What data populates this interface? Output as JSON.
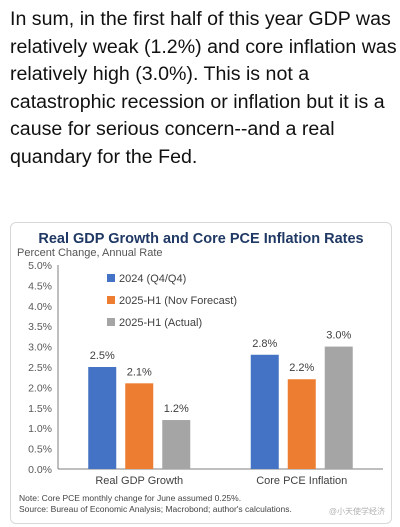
{
  "post": {
    "text": "In sum, in the first half of this year GDP was relatively weak (1.2%) and core inflation was relatively high (3.0%). This is not a catastrophic recession or inflation but it is a cause for serious concern--and a real quandary for the Fed."
  },
  "chart_data": {
    "type": "bar",
    "title": "Real GDP Growth and Core PCE Inflation Rates",
    "subtitle": "Percent Change, Annual Rate",
    "categories": [
      "Real GDP Growth",
      "Core PCE Inflation"
    ],
    "series": [
      {
        "name": "2024 (Q4/Q4)",
        "color": "#4472c4",
        "values": [
          2.5,
          2.8
        ],
        "labels": [
          "2.5%",
          "2.8%"
        ]
      },
      {
        "name": "2025-H1 (Nov Forecast)",
        "color": "#ed7d31",
        "values": [
          2.1,
          2.2
        ],
        "labels": [
          "2.1%",
          "2.2%"
        ]
      },
      {
        "name": "2025-H1 (Actual)",
        "color": "#a5a5a5",
        "values": [
          1.2,
          3.0
        ],
        "labels": [
          "1.2%",
          "3.0%"
        ]
      }
    ],
    "ylim": [
      0,
      5.0
    ],
    "yticks": [
      "0.0%",
      "0.5%",
      "1.0%",
      "1.5%",
      "2.0%",
      "2.5%",
      "3.0%",
      "3.5%",
      "4.0%",
      "4.5%",
      "5.0%"
    ],
    "grid": false,
    "legend": "top-left",
    "notes": [
      "Note: Core PCE monthly change for June assumed 0.25%.",
      "Source: Bureau of Economic Analysis; Macrobond; author's calculations."
    ]
  },
  "watermark": "@小天使学经济"
}
